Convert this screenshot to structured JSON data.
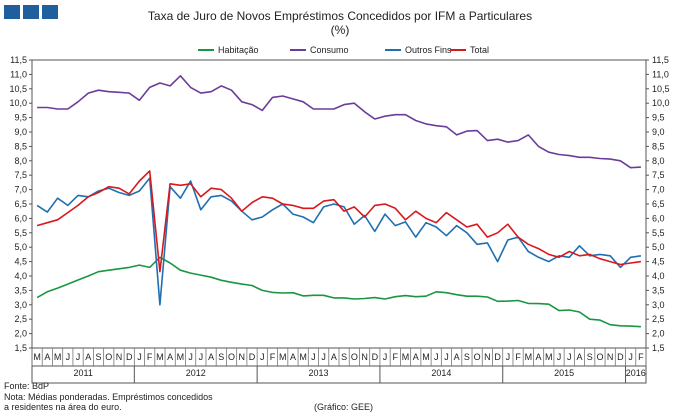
{
  "header": {
    "logo_icon": "logo-squares-icon",
    "title": "Taxa de Juro de Novos Empréstimos Concedidos por IFM a Particulares",
    "unit": "(%)"
  },
  "chart_data": {
    "type": "line",
    "title": "Taxa de Juro de Novos Empréstimos Concedidos por IFM a Particulares",
    "subtitle": "(%)",
    "ylim": [
      1.5,
      11.5
    ],
    "yticks": [
      "1,5",
      "2,0",
      "2,5",
      "3,0",
      "3,5",
      "4,0",
      "4,5",
      "5,0",
      "5,5",
      "6,0",
      "6,5",
      "7,0",
      "7,5",
      "8,0",
      "8,5",
      "9,0",
      "9,5",
      "10,0",
      "10,5",
      "11,0",
      "11,5"
    ],
    "grid": false,
    "legend_position": "top",
    "month_labels": [
      "M",
      "A",
      "M",
      "J",
      "J",
      "A",
      "S",
      "O",
      "N",
      "D",
      "J",
      "F",
      "M",
      "A",
      "M",
      "J",
      "J",
      "A",
      "S",
      "O",
      "N",
      "D",
      "J",
      "F",
      "M",
      "A",
      "M",
      "J",
      "J",
      "A",
      "S",
      "O",
      "N",
      "D",
      "J",
      "F",
      "M",
      "A",
      "M",
      "J",
      "J",
      "A",
      "S",
      "O",
      "N",
      "D",
      "J",
      "F",
      "M",
      "A",
      "M",
      "J",
      "J",
      "A",
      "S",
      "O",
      "N",
      "D",
      "J",
      "F"
    ],
    "year_labels": [
      {
        "label": "2011",
        "first": 0,
        "last": 9
      },
      {
        "label": "2012",
        "first": 10,
        "last": 21
      },
      {
        "label": "2013",
        "first": 22,
        "last": 33
      },
      {
        "label": "2014",
        "first": 34,
        "last": 45
      },
      {
        "label": "2015",
        "first": 46,
        "last": 57
      },
      {
        "label": "2016",
        "first": 58,
        "last": 59
      }
    ],
    "series": [
      {
        "name": "Habitação",
        "color": "#1a9641",
        "values": [
          3.25,
          3.45,
          3.58,
          3.72,
          3.86,
          4.0,
          4.15,
          4.2,
          4.25,
          4.3,
          4.38,
          4.3,
          4.65,
          4.45,
          4.2,
          4.1,
          4.03,
          3.96,
          3.85,
          3.78,
          3.72,
          3.67,
          3.5,
          3.43,
          3.41,
          3.42,
          3.31,
          3.33,
          3.33,
          3.24,
          3.24,
          3.2,
          3.22,
          3.25,
          3.2,
          3.28,
          3.32,
          3.28,
          3.3,
          3.45,
          3.42,
          3.35,
          3.3,
          3.3,
          3.27,
          3.12,
          3.13,
          3.15,
          3.05,
          3.04,
          3.02,
          2.8,
          2.82,
          2.75,
          2.5,
          2.47,
          2.31,
          2.27,
          2.26,
          2.24
        ]
      },
      {
        "name": "Consumo",
        "color": "#6a3d9a",
        "values": [
          9.85,
          9.85,
          9.8,
          9.8,
          10.05,
          10.35,
          10.45,
          10.4,
          10.38,
          10.35,
          10.1,
          10.55,
          10.7,
          10.6,
          10.95,
          10.55,
          10.35,
          10.4,
          10.6,
          10.45,
          10.05,
          9.95,
          9.75,
          10.2,
          10.25,
          10.15,
          10.05,
          9.8,
          9.8,
          9.8,
          9.95,
          10.0,
          9.7,
          9.45,
          9.55,
          9.6,
          9.6,
          9.4,
          9.28,
          9.22,
          9.18,
          8.9,
          9.03,
          9.05,
          8.7,
          8.75,
          8.65,
          8.7,
          8.9,
          8.5,
          8.3,
          8.22,
          8.18,
          8.12,
          8.12,
          8.08,
          8.06,
          8.0,
          7.76,
          7.78
        ]
      },
      {
        "name": "Outros Fins",
        "color": "#1f6fb2",
        "values": [
          6.45,
          6.22,
          6.7,
          6.45,
          6.8,
          6.75,
          6.95,
          7.05,
          6.9,
          6.8,
          6.95,
          7.4,
          3.0,
          7.1,
          6.7,
          7.3,
          6.3,
          6.75,
          6.8,
          6.6,
          6.25,
          5.95,
          6.05,
          6.3,
          6.5,
          6.15,
          6.05,
          5.85,
          6.4,
          6.5,
          6.4,
          5.8,
          6.1,
          5.55,
          6.15,
          5.75,
          5.88,
          5.35,
          5.85,
          5.7,
          5.4,
          5.75,
          5.5,
          5.1,
          5.15,
          4.5,
          5.25,
          5.35,
          4.85,
          4.65,
          4.5,
          4.7,
          4.65,
          5.05,
          4.7,
          4.75,
          4.7,
          4.3,
          4.65,
          4.7
        ]
      },
      {
        "name": "Total",
        "color": "#d7191c",
        "values": [
          5.75,
          5.85,
          5.95,
          6.2,
          6.45,
          6.75,
          6.9,
          7.1,
          7.05,
          6.85,
          7.3,
          7.65,
          4.15,
          7.2,
          7.15,
          7.2,
          6.75,
          7.05,
          7.0,
          6.7,
          6.25,
          6.55,
          6.75,
          6.7,
          6.5,
          6.45,
          6.35,
          6.35,
          6.6,
          6.65,
          6.25,
          6.4,
          6.05,
          6.45,
          6.5,
          6.35,
          5.95,
          6.25,
          6.0,
          5.85,
          6.2,
          5.95,
          5.7,
          5.8,
          5.35,
          5.5,
          5.8,
          5.35,
          5.1,
          4.95,
          4.75,
          4.65,
          4.85,
          4.7,
          4.75,
          4.6,
          4.5,
          4.4,
          4.45,
          4.5
        ]
      }
    ]
  },
  "footer": {
    "source": "Fonte: BdP",
    "note_line1": "Nota: Médias ponderadas.  Empréstimos concedidos",
    "note_line2": "a residentes na área do euro.",
    "credit": "(Gráfico:  GEE)"
  }
}
